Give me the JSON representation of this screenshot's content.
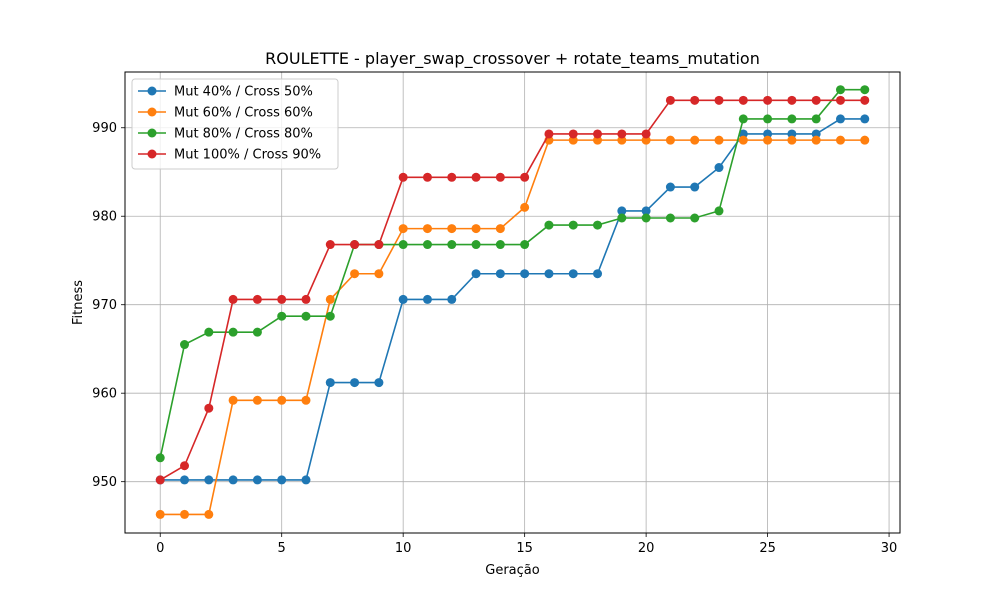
{
  "chart_data": {
    "type": "line",
    "title": "ROULETTE - player_swap_crossover + rotate_teams_mutation",
    "xlabel": "Geração",
    "ylabel": "Fitness",
    "xlim": [
      -1.45,
      30.45
    ],
    "ylim": [
      944.2,
      996.3
    ],
    "xticks": [
      0,
      5,
      10,
      15,
      20,
      25,
      30
    ],
    "yticks": [
      950,
      960,
      970,
      980,
      990
    ],
    "grid": true,
    "legend_position": "top-left",
    "x": [
      0,
      1,
      2,
      3,
      4,
      5,
      6,
      7,
      8,
      9,
      10,
      11,
      12,
      13,
      14,
      15,
      16,
      17,
      18,
      19,
      20,
      21,
      22,
      23,
      24,
      25,
      26,
      27,
      28,
      29
    ],
    "series": [
      {
        "name": "Mut 40% / Cross 50%",
        "color": "#1f77b4",
        "values": [
          950.2,
          950.2,
          950.2,
          950.2,
          950.2,
          950.2,
          950.2,
          961.2,
          961.2,
          961.2,
          970.6,
          970.6,
          970.6,
          973.5,
          973.5,
          973.5,
          973.5,
          973.5,
          973.5,
          980.6,
          980.6,
          983.3,
          983.3,
          985.5,
          989.3,
          989.3,
          989.3,
          989.3,
          991.0,
          991.0
        ]
      },
      {
        "name": "Mut 60% / Cross 60%",
        "color": "#ff7f0e",
        "values": [
          946.3,
          946.3,
          946.3,
          959.2,
          959.2,
          959.2,
          959.2,
          970.6,
          973.5,
          973.5,
          978.6,
          978.6,
          978.6,
          978.6,
          978.6,
          981.0,
          988.6,
          988.6,
          988.6,
          988.6,
          988.6,
          988.6,
          988.6,
          988.6,
          988.6,
          988.6,
          988.6,
          988.6,
          988.6,
          988.6
        ]
      },
      {
        "name": "Mut 80% / Cross 80%",
        "color": "#2ca02c",
        "values": [
          952.7,
          965.5,
          966.9,
          966.9,
          966.9,
          968.7,
          968.7,
          968.7,
          976.8,
          976.8,
          976.8,
          976.8,
          976.8,
          976.8,
          976.8,
          976.8,
          979.0,
          979.0,
          979.0,
          979.8,
          979.8,
          979.8,
          979.8,
          980.6,
          991.0,
          991.0,
          991.0,
          991.0,
          994.3,
          994.3
        ]
      },
      {
        "name": "Mut 100% / Cross 90%",
        "color": "#d62728",
        "values": [
          950.2,
          951.8,
          958.3,
          970.6,
          970.6,
          970.6,
          970.6,
          976.8,
          976.8,
          976.8,
          984.4,
          984.4,
          984.4,
          984.4,
          984.4,
          984.4,
          989.3,
          989.3,
          989.3,
          989.3,
          989.3,
          993.1,
          993.1,
          993.1,
          993.1,
          993.1,
          993.1,
          993.1,
          993.1,
          993.1
        ]
      }
    ]
  }
}
